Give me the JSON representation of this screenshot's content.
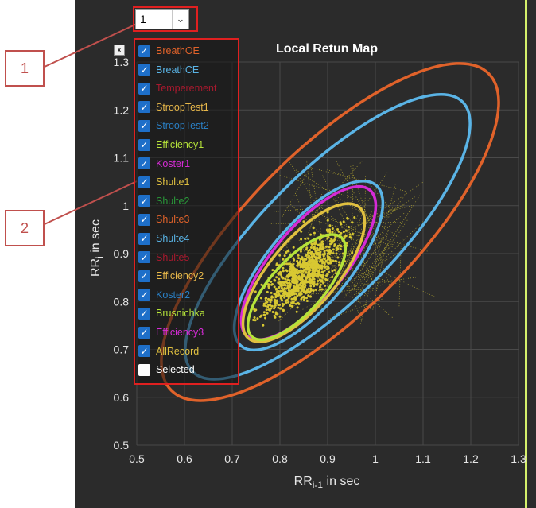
{
  "callouts": {
    "one": "1",
    "two": "2"
  },
  "dropdown": {
    "value": "1"
  },
  "close_label": "x",
  "legend": [
    {
      "label": "BreathOE",
      "checked": true,
      "color": "#e0622a"
    },
    {
      "label": "BreathCE",
      "checked": true,
      "color": "#5ab4e6"
    },
    {
      "label": "Temperement",
      "checked": true,
      "color": "#a8192e"
    },
    {
      "label": "StroopTest1",
      "checked": true,
      "color": "#e8b84a"
    },
    {
      "label": "StroopTest2",
      "checked": true,
      "color": "#2a7fc4"
    },
    {
      "label": "Efficiency1",
      "checked": true,
      "color": "#b6e33a"
    },
    {
      "label": "Koster1",
      "checked": true,
      "color": "#d62bd6"
    },
    {
      "label": "Shulte1",
      "checked": true,
      "color": "#e0c040"
    },
    {
      "label": "Shulte2",
      "checked": true,
      "color": "#2a9a3a"
    },
    {
      "label": "Shulte3",
      "checked": true,
      "color": "#e0622a"
    },
    {
      "label": "Shulte4",
      "checked": true,
      "color": "#5ab4e6"
    },
    {
      "label": "Shulte5",
      "checked": true,
      "color": "#a8192e"
    },
    {
      "label": "Efficiency2",
      "checked": true,
      "color": "#e8b84a"
    },
    {
      "label": "Koster2",
      "checked": true,
      "color": "#2a7fc4"
    },
    {
      "label": "Brusnichka",
      "checked": true,
      "color": "#b6e33a"
    },
    {
      "label": "Efficiency3",
      "checked": true,
      "color": "#d62bd6"
    },
    {
      "label": "AllRecord",
      "checked": true,
      "color": "#e0c040"
    },
    {
      "label": "Selected",
      "checked": false,
      "color": "#ffffff"
    }
  ],
  "chart_data": {
    "type": "scatter",
    "title": "Local Retun Map",
    "xlabel": "RR",
    "xlabel_sub": "i-1",
    "xlabel_suffix": " in sec",
    "ylabel": "RR",
    "ylabel_sub": "i",
    "ylabel_suffix": " in sec",
    "xlim": [
      0.5,
      1.3
    ],
    "ylim": [
      0.5,
      1.3
    ],
    "xticks": [
      "0.5",
      "0.6",
      "0.7",
      "0.8",
      "0.9",
      "1",
      "1.1",
      "1.2",
      "1.3"
    ],
    "yticks": [
      "0.5",
      "0.6",
      "0.7",
      "0.8",
      "0.9",
      "1",
      "1.1",
      "1.2",
      "1.3"
    ],
    "ellipses": [
      {
        "series": "BreathOE",
        "cx": 0.905,
        "cy": 0.945,
        "rx": 0.47,
        "ry": 0.17,
        "angle_deg": 45,
        "color": "#e0622a"
      },
      {
        "series": "BreathCE",
        "cx": 0.9,
        "cy": 0.935,
        "rx": 0.4,
        "ry": 0.135,
        "angle_deg": 45,
        "color": "#5ab4e6"
      },
      {
        "series": "Shulte4",
        "cx": 0.86,
        "cy": 0.875,
        "rx": 0.22,
        "ry": 0.085,
        "angle_deg": 50,
        "color": "#5ab4e6"
      },
      {
        "series": "Koster1",
        "cx": 0.86,
        "cy": 0.88,
        "rx": 0.2,
        "ry": 0.075,
        "angle_deg": 50,
        "color": "#d62bd6"
      },
      {
        "series": "AllRecord",
        "cx": 0.85,
        "cy": 0.86,
        "rx": 0.18,
        "ry": 0.07,
        "angle_deg": 50,
        "color": "#e0c040"
      },
      {
        "series": "Brusnichka",
        "cx": 0.835,
        "cy": 0.83,
        "rx": 0.14,
        "ry": 0.055,
        "angle_deg": 48,
        "color": "#b6e33a"
      }
    ],
    "points_color": "#d8c832",
    "grid": true
  }
}
